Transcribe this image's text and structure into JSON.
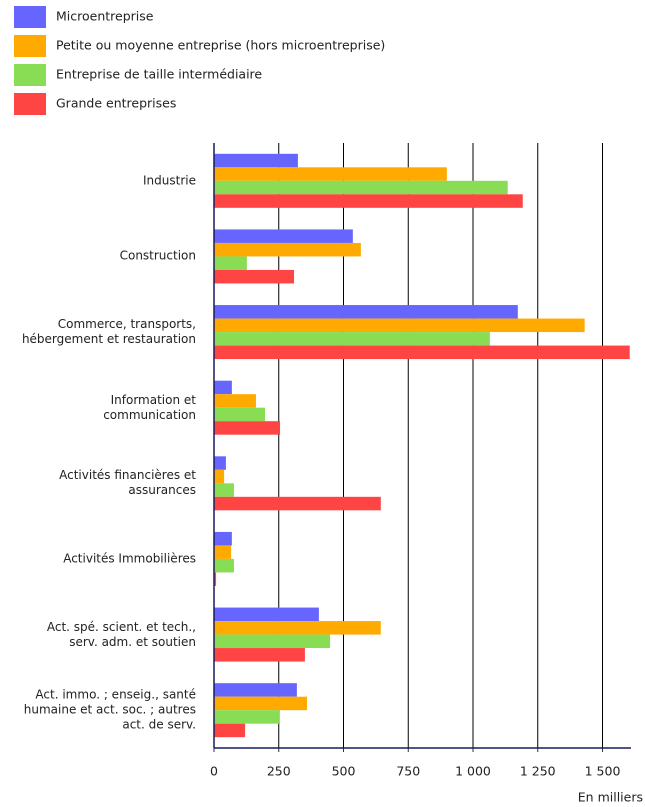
{
  "chart_data": {
    "type": "bar",
    "orientation": "horizontal",
    "categories": [
      "Industrie",
      "Construction",
      "Commerce, transports, hébergement et restauration",
      "Information et communication",
      "Activités financières et assurances",
      "Activités Immobilières",
      "Act. spé. scient. et tech., serv. adm. et soutien",
      "Act. immo. ; enseig., santé humaine et act. soc. ; autres act. de serv."
    ],
    "series": [
      {
        "name": "Microentreprise",
        "color": "#6666ff",
        "values": [
          324,
          536,
          1173,
          69,
          46,
          69,
          405,
          320
        ]
      },
      {
        "name": "Petite ou moyenne entreprise (hors microentreprise)",
        "color": "#ffaa00",
        "values": [
          899,
          567,
          1431,
          162,
          39,
          66,
          644,
          359
        ]
      },
      {
        "name": "Entreprise de taille intermédiaire",
        "color": "#88dd55",
        "values": [
          1134,
          127,
          1065,
          197,
          77,
          77,
          448,
          251
        ]
      },
      {
        "name": "Grande entreprises",
        "color": "#ff4444",
        "values": [
          1192,
          309,
          1605,
          255,
          644,
          8,
          351,
          120
        ]
      }
    ],
    "xlabel": "En milliers",
    "xlim": [
      0,
      1610
    ],
    "xticks": [
      0,
      250,
      500,
      750,
      {
        "value": 1000,
        "label": "1 000"
      },
      {
        "value": 1250,
        "label": "1 250"
      },
      {
        "value": 1500,
        "label": "1 500"
      }
    ],
    "grid": true,
    "legend": "top-left"
  }
}
